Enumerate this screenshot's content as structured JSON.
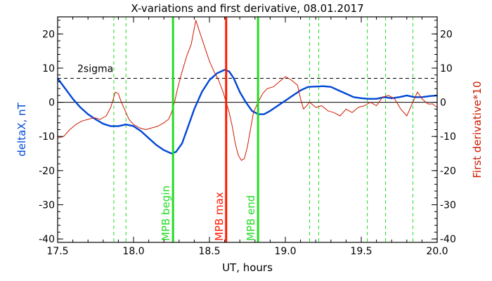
{
  "chart_data": {
    "type": "line",
    "title": "X-variations and first derivative, 08.01.2017",
    "xlabel": "UT, hours",
    "ylabel_left": "deltaX, nT",
    "ylabel_right": "First derivative*10",
    "xlim": [
      17.5,
      20.0
    ],
    "ylim": [
      -41,
      25
    ],
    "x_ticks": [
      17.5,
      18.0,
      18.5,
      19.0,
      19.5,
      20.0
    ],
    "x_tick_labels": [
      "17.5",
      "18.0",
      "18.5",
      "19.0",
      "19.5",
      "20.0"
    ],
    "y_ticks": [
      -40,
      -30,
      -20,
      -10,
      0,
      10,
      20
    ],
    "y_tick_labels": [
      "-40",
      "-30",
      "-20",
      "-10",
      "0",
      "10",
      "20"
    ],
    "threshold": {
      "label": "2sigma",
      "value": 7
    },
    "colors": {
      "deltaX": "#0047d6",
      "derivative": "#cc1a00",
      "mpb_begin": "#22dd22",
      "mpb_max": "#ff1a00",
      "mpb_end": "#22dd22",
      "dashed_markers": "#22dd22",
      "left_label": "#0047d6",
      "right_label": "#cc1a00"
    },
    "markers": [
      {
        "label": "MPB begin",
        "x": 18.26
      },
      {
        "label": "MPB max",
        "x": 18.61
      },
      {
        "label": "MPB end",
        "x": 18.82
      }
    ],
    "dashed_markers": [
      17.87,
      17.95,
      19.16,
      19.22,
      19.54,
      19.66,
      19.84
    ],
    "series": [
      {
        "points": [
          [
            17.5,
            7.0
          ],
          [
            17.55,
            4.0
          ],
          [
            17.6,
            1.0
          ],
          [
            17.65,
            -1.5
          ],
          [
            17.7,
            -3.5
          ],
          [
            17.75,
            -5.0
          ],
          [
            17.8,
            -6.3
          ],
          [
            17.85,
            -7.0
          ],
          [
            17.9,
            -7.0
          ],
          [
            17.95,
            -6.5
          ],
          [
            18.0,
            -7.0
          ],
          [
            18.05,
            -8.5
          ],
          [
            18.1,
            -10.5
          ],
          [
            18.15,
            -12.5
          ],
          [
            18.2,
            -14.0
          ],
          [
            18.25,
            -15.0
          ],
          [
            18.28,
            -14.5
          ],
          [
            18.32,
            -12.0
          ],
          [
            18.36,
            -7.0
          ],
          [
            18.4,
            -2.0
          ],
          [
            18.45,
            3.0
          ],
          [
            18.5,
            6.5
          ],
          [
            18.55,
            8.5
          ],
          [
            18.6,
            9.5
          ],
          [
            18.63,
            9.0
          ],
          [
            18.66,
            7.0
          ],
          [
            18.7,
            3.0
          ],
          [
            18.74,
            0.0
          ],
          [
            18.78,
            -2.5
          ],
          [
            18.82,
            -3.5
          ],
          [
            18.86,
            -3.5
          ],
          [
            18.9,
            -2.5
          ],
          [
            18.95,
            -1.0
          ],
          [
            19.0,
            0.5
          ],
          [
            19.05,
            2.0
          ],
          [
            19.1,
            3.5
          ],
          [
            19.15,
            4.5
          ],
          [
            19.2,
            4.6
          ],
          [
            19.25,
            4.7
          ],
          [
            19.3,
            4.5
          ],
          [
            19.35,
            3.5
          ],
          [
            19.4,
            2.5
          ],
          [
            19.45,
            1.5
          ],
          [
            19.5,
            1.2
          ],
          [
            19.55,
            1.0
          ],
          [
            19.6,
            1.0
          ],
          [
            19.65,
            1.5
          ],
          [
            19.7,
            1.2
          ],
          [
            19.75,
            1.5
          ],
          [
            19.8,
            2.0
          ],
          [
            19.85,
            1.5
          ],
          [
            19.9,
            1.5
          ],
          [
            19.95,
            1.8
          ],
          [
            20.0,
            2.0
          ]
        ]
      },
      {
        "points": [
          [
            17.5,
            -10.5
          ],
          [
            17.54,
            -10.0
          ],
          [
            17.58,
            -8.0
          ],
          [
            17.62,
            -6.5
          ],
          [
            17.66,
            -5.5
          ],
          [
            17.7,
            -5.0
          ],
          [
            17.74,
            -4.5
          ],
          [
            17.78,
            -5.0
          ],
          [
            17.82,
            -4.0
          ],
          [
            17.85,
            -1.5
          ],
          [
            17.88,
            3.0
          ],
          [
            17.9,
            2.5
          ],
          [
            17.92,
            0.0
          ],
          [
            17.94,
            -2.0
          ],
          [
            17.97,
            -5.0
          ],
          [
            18.0,
            -6.5
          ],
          [
            18.04,
            -7.5
          ],
          [
            18.08,
            -8.0
          ],
          [
            18.12,
            -7.5
          ],
          [
            18.16,
            -7.0
          ],
          [
            18.2,
            -6.0
          ],
          [
            18.23,
            -5.0
          ],
          [
            18.25,
            -3.0
          ],
          [
            18.27,
            0.0
          ],
          [
            18.29,
            4.0
          ],
          [
            18.32,
            9.0
          ],
          [
            18.35,
            13.5
          ],
          [
            18.38,
            17.0
          ],
          [
            18.41,
            24.0
          ],
          [
            18.44,
            20.0
          ],
          [
            18.47,
            16.0
          ],
          [
            18.5,
            12.0
          ],
          [
            18.53,
            9.0
          ],
          [
            18.56,
            6.5
          ],
          [
            18.59,
            3.0
          ],
          [
            18.61,
            0.0
          ],
          [
            18.63,
            -3.0
          ],
          [
            18.65,
            -7.0
          ],
          [
            18.67,
            -12.0
          ],
          [
            18.69,
            -15.5
          ],
          [
            18.71,
            -17.0
          ],
          [
            18.73,
            -16.5
          ],
          [
            18.75,
            -13.0
          ],
          [
            18.77,
            -8.0
          ],
          [
            18.79,
            -3.0
          ],
          [
            18.82,
            0.0
          ],
          [
            18.85,
            2.5
          ],
          [
            18.88,
            4.0
          ],
          [
            18.92,
            4.5
          ],
          [
            18.96,
            6.0
          ],
          [
            19.0,
            7.5
          ],
          [
            19.04,
            6.5
          ],
          [
            19.08,
            5.0
          ],
          [
            19.1,
            1.0
          ],
          [
            19.12,
            -2.0
          ],
          [
            19.16,
            0.0
          ],
          [
            19.2,
            -1.5
          ],
          [
            19.24,
            -1.0
          ],
          [
            19.28,
            -2.5
          ],
          [
            19.32,
            -3.0
          ],
          [
            19.36,
            -4.0
          ],
          [
            19.4,
            -2.0
          ],
          [
            19.44,
            -3.0
          ],
          [
            19.48,
            -1.5
          ],
          [
            19.52,
            -1.0
          ],
          [
            19.56,
            0.0
          ],
          [
            19.6,
            -1.0
          ],
          [
            19.64,
            1.5
          ],
          [
            19.68,
            2.0
          ],
          [
            19.72,
            1.0
          ],
          [
            19.76,
            -2.0
          ],
          [
            19.8,
            -4.0
          ],
          [
            19.84,
            0.0
          ],
          [
            19.87,
            3.0
          ],
          [
            19.9,
            1.0
          ],
          [
            19.94,
            -0.5
          ],
          [
            19.97,
            -0.5
          ],
          [
            20.0,
            -1.5
          ]
        ]
      }
    ]
  }
}
